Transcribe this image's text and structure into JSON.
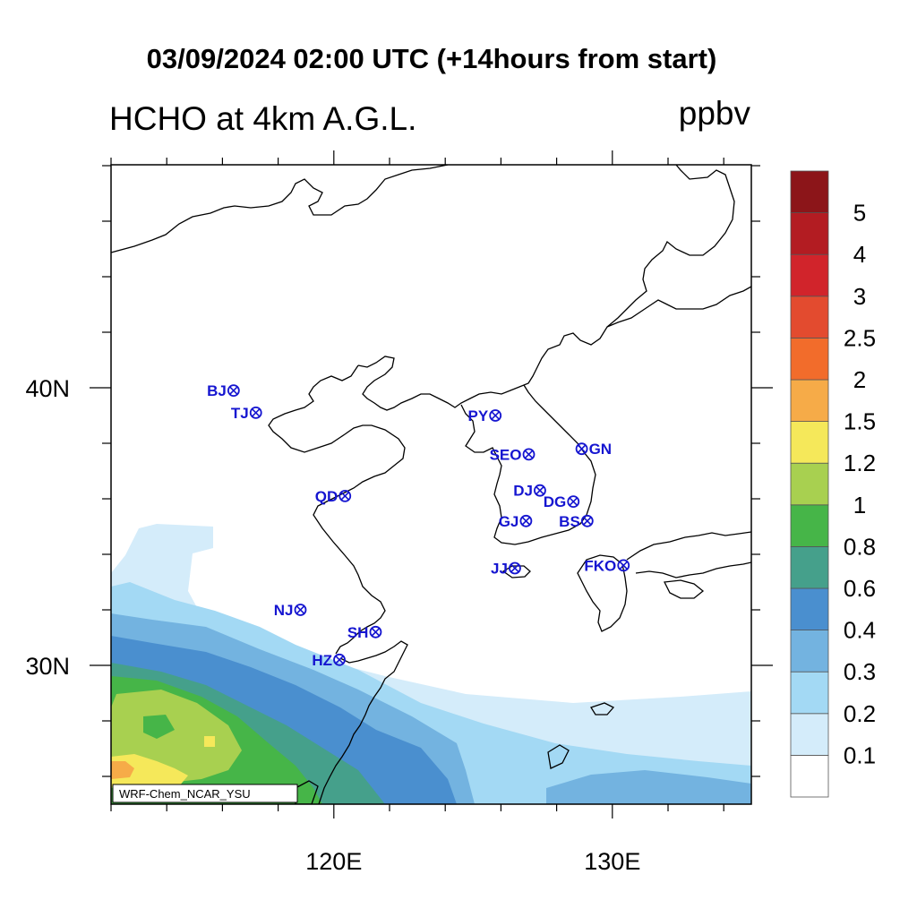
{
  "title": "03/09/2024 02:00 UTC (+14hours from start)",
  "variable": "HCHO at 4km A.G.L.",
  "units": "ppbv",
  "model": "WRF-Chem_NCAR_YSU",
  "map": {
    "lon_range": [
      112,
      135
    ],
    "lat_range": [
      25,
      48
    ],
    "lon_ticks": [
      {
        "value": 120,
        "label": "120E"
      },
      {
        "value": 130,
        "label": "130E"
      }
    ],
    "lat_ticks": [
      {
        "value": 30,
        "label": "30N"
      },
      {
        "value": 40,
        "label": "40N"
      }
    ]
  },
  "colorbar": {
    "levels": [
      "0.1",
      "0.2",
      "0.3",
      "0.4",
      "0.6",
      "0.8",
      "1",
      "1.2",
      "1.5",
      "2",
      "2.5",
      "3",
      "4",
      "5"
    ],
    "colors": [
      "#ffffff",
      "#d4ecfa",
      "#a3d9f4",
      "#73b3e0",
      "#4a8fcf",
      "#45a08b",
      "#46b548",
      "#a8d050",
      "#f5e85a",
      "#f6ab48",
      "#f26c2b",
      "#e34b2f",
      "#d1242b",
      "#b31c22",
      "#8c1519"
    ]
  },
  "cities": [
    {
      "code": "BJ",
      "lon": 116.4,
      "lat": 39.9,
      "label_side": "left"
    },
    {
      "code": "TJ",
      "lon": 117.2,
      "lat": 39.1,
      "label_side": "left"
    },
    {
      "code": "PY",
      "lon": 125.8,
      "lat": 39.0,
      "label_side": "left"
    },
    {
      "code": "SEO",
      "lon": 127.0,
      "lat": 37.6,
      "label_side": "left"
    },
    {
      "code": "GN",
      "lon": 128.9,
      "lat": 37.8,
      "label_side": "right"
    },
    {
      "code": "DJ",
      "lon": 127.4,
      "lat": 36.3,
      "label_side": "left"
    },
    {
      "code": "DG",
      "lon": 128.6,
      "lat": 35.9,
      "label_side": "left"
    },
    {
      "code": "QD",
      "lon": 120.4,
      "lat": 36.1,
      "label_side": "left"
    },
    {
      "code": "GJ",
      "lon": 126.9,
      "lat": 35.2,
      "label_side": "left"
    },
    {
      "code": "BS",
      "lon": 129.1,
      "lat": 35.2,
      "label_side": "left"
    },
    {
      "code": "JJ",
      "lon": 126.5,
      "lat": 33.5,
      "label_side": "left"
    },
    {
      "code": "FKO",
      "lon": 130.4,
      "lat": 33.6,
      "label_side": "left"
    },
    {
      "code": "NJ",
      "lon": 118.8,
      "lat": 32.0,
      "label_side": "left"
    },
    {
      "code": "SH",
      "lon": 121.5,
      "lat": 31.2,
      "label_side": "left"
    },
    {
      "code": "HZ",
      "lon": 120.2,
      "lat": 30.2,
      "label_side": "left"
    }
  ]
}
